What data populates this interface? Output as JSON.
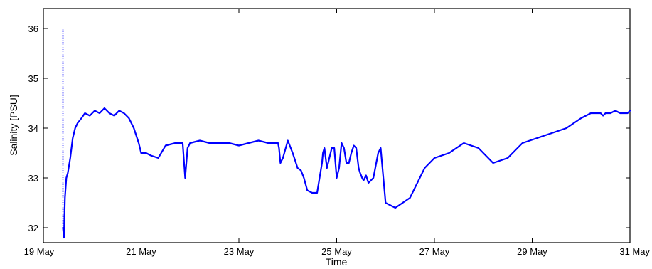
{
  "chart_data": {
    "type": "line",
    "xlabel": "Time",
    "ylabel": "Salinity [PSU]",
    "x_unit": "day of May",
    "xlim": [
      19,
      31
    ],
    "ylim": [
      31.7,
      36.4
    ],
    "x_ticks": [
      19,
      21,
      23,
      25,
      27,
      29,
      31
    ],
    "x_tick_labels": [
      "19 May",
      "21 May",
      "23 May",
      "25 May",
      "27 May",
      "29 May",
      "31 May"
    ],
    "y_ticks": [
      32,
      33,
      34,
      35,
      36
    ],
    "y_tick_labels": [
      "32",
      "33",
      "34",
      "35",
      "36"
    ],
    "grid": false,
    "line_color": "#0000ff",
    "series": [
      {
        "x": [
          19.4,
          19.42,
          19.44,
          19.47,
          19.5,
          19.55,
          19.6,
          19.65,
          19.7,
          19.78,
          19.85,
          19.95,
          20.05,
          20.15,
          20.25,
          20.35,
          20.45,
          20.55,
          20.65,
          20.75,
          20.85,
          20.95,
          21.0,
          21.1,
          21.2,
          21.35,
          21.5,
          21.7,
          21.85,
          21.9,
          21.95,
          22.0,
          22.2,
          22.4,
          22.6,
          22.8,
          23.0,
          23.2,
          23.4,
          23.6,
          23.7,
          23.8,
          23.82,
          23.85,
          23.9,
          24.0,
          24.1,
          24.15,
          24.2,
          24.27,
          24.33,
          24.4,
          24.5,
          24.6,
          24.7,
          24.72,
          24.75,
          24.8,
          24.85,
          24.9,
          24.95,
          25.0,
          25.05,
          25.1,
          25.15,
          25.2,
          25.25,
          25.3,
          25.35,
          25.4,
          25.45,
          25.48,
          25.52,
          25.55,
          25.6,
          25.65,
          25.75,
          25.85,
          25.9,
          26.0,
          26.2,
          26.5,
          26.8,
          27.0,
          27.3,
          27.6,
          27.9,
          28.2,
          28.5,
          28.8,
          29.1,
          29.4,
          29.7,
          30.0,
          30.2,
          30.4,
          30.45,
          30.5,
          30.6,
          30.7,
          30.8,
          30.9,
          30.95,
          31.0
        ],
        "y": [
          32.0,
          31.8,
          32.6,
          33.0,
          33.1,
          33.4,
          33.8,
          34.0,
          34.1,
          34.2,
          34.3,
          34.25,
          34.35,
          34.3,
          34.4,
          34.3,
          34.25,
          34.35,
          34.3,
          34.2,
          34.0,
          33.7,
          33.5,
          33.5,
          33.45,
          33.4,
          33.65,
          33.7,
          33.7,
          33.0,
          33.6,
          33.7,
          33.75,
          33.7,
          33.7,
          33.7,
          33.65,
          33.7,
          33.75,
          33.7,
          33.7,
          33.7,
          33.6,
          33.3,
          33.4,
          33.75,
          33.5,
          33.35,
          33.2,
          33.15,
          33.0,
          32.75,
          32.7,
          32.7,
          33.3,
          33.5,
          33.6,
          33.2,
          33.4,
          33.6,
          33.6,
          33.0,
          33.2,
          33.7,
          33.6,
          33.3,
          33.3,
          33.5,
          33.65,
          33.6,
          33.2,
          33.1,
          33.0,
          32.95,
          33.05,
          32.9,
          33.0,
          33.5,
          33.6,
          32.5,
          32.4,
          32.6,
          33.2,
          33.4,
          33.5,
          33.7,
          33.6,
          33.3,
          33.4,
          33.7,
          33.8,
          33.9,
          34.0,
          34.2,
          34.3,
          34.3,
          34.25,
          34.3,
          34.3,
          34.35,
          34.3,
          34.3,
          34.3,
          34.35
        ]
      }
    ]
  }
}
